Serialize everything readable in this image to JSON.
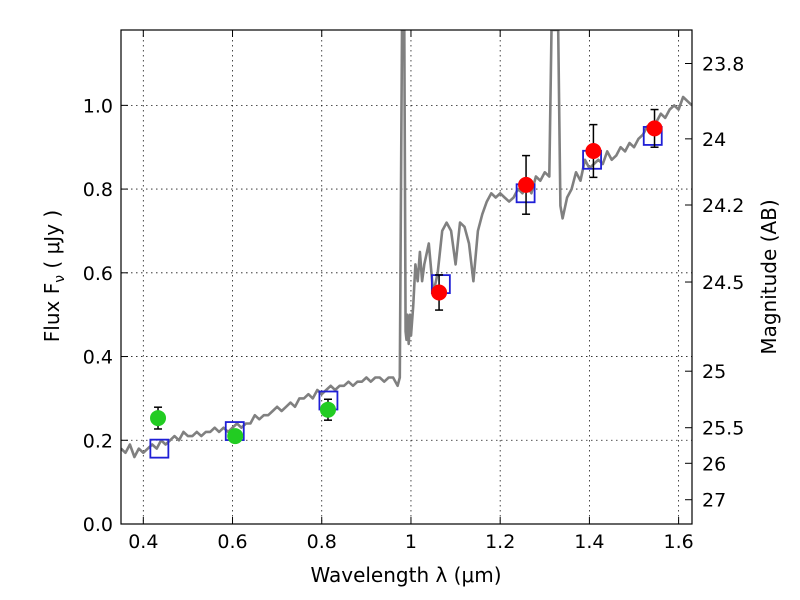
{
  "chart_data": {
    "type": "scatter",
    "title": "",
    "xlabel": "Wavelength  λ (μm)",
    "ylabel": "Flux  F",
    "ylabel_subscript": "ν",
    "ylabel_unit": "  ( μJy )",
    "ylabel_right": "Magnitude (AB)",
    "xlim": [
      0.35,
      1.63
    ],
    "ylim": [
      0.0,
      1.18
    ],
    "grid": true,
    "x_ticks": [
      {
        "value": 0.4,
        "label": "0.4"
      },
      {
        "value": 0.6,
        "label": "0.6"
      },
      {
        "value": 0.8,
        "label": "0.8"
      },
      {
        "value": 1.0,
        "label": "1"
      },
      {
        "value": 1.2,
        "label": "1.2"
      },
      {
        "value": 1.4,
        "label": "1.4"
      },
      {
        "value": 1.6,
        "label": "1.6"
      }
    ],
    "y_ticks": [
      {
        "value": 0.0,
        "label": "0.0"
      },
      {
        "value": 0.2,
        "label": "0.2"
      },
      {
        "value": 0.4,
        "label": "0.4"
      },
      {
        "value": 0.6,
        "label": "0.6"
      },
      {
        "value": 0.8,
        "label": "0.8"
      },
      {
        "value": 1.0,
        "label": "1.0"
      }
    ],
    "right_ticks": [
      {
        "flux": 1.1,
        "label": "23.8"
      },
      {
        "flux": 0.92,
        "label": "24"
      },
      {
        "flux": 0.762,
        "label": "24.2"
      },
      {
        "flux": 0.578,
        "label": "24.5"
      },
      {
        "flux": 0.365,
        "label": "25"
      },
      {
        "flux": 0.23,
        "label": "25.5"
      },
      {
        "flux": 0.145,
        "label": "26"
      },
      {
        "flux": 0.058,
        "label": "27"
      }
    ],
    "series": [
      {
        "kind": "line",
        "color": "#808080",
        "x": [
          0.35,
          0.36,
          0.37,
          0.38,
          0.39,
          0.4,
          0.41,
          0.42,
          0.43,
          0.44,
          0.45,
          0.46,
          0.47,
          0.48,
          0.49,
          0.5,
          0.51,
          0.52,
          0.53,
          0.54,
          0.55,
          0.56,
          0.57,
          0.58,
          0.59,
          0.6,
          0.61,
          0.62,
          0.63,
          0.64,
          0.65,
          0.66,
          0.67,
          0.68,
          0.69,
          0.7,
          0.71,
          0.72,
          0.73,
          0.74,
          0.75,
          0.76,
          0.77,
          0.78,
          0.79,
          0.8,
          0.81,
          0.82,
          0.83,
          0.84,
          0.85,
          0.86,
          0.87,
          0.88,
          0.89,
          0.9,
          0.91,
          0.92,
          0.93,
          0.94,
          0.95,
          0.96,
          0.97,
          0.975,
          0.98,
          0.983,
          0.985,
          0.988,
          0.99,
          0.992,
          0.995,
          0.998,
          1.0,
          1.005,
          1.01,
          1.015,
          1.02,
          1.025,
          1.03,
          1.04,
          1.05,
          1.06,
          1.07,
          1.08,
          1.09,
          1.1,
          1.11,
          1.12,
          1.13,
          1.14,
          1.15,
          1.16,
          1.17,
          1.18,
          1.19,
          1.2,
          1.21,
          1.22,
          1.23,
          1.24,
          1.25,
          1.26,
          1.27,
          1.28,
          1.29,
          1.3,
          1.31,
          1.315,
          1.32,
          1.325,
          1.33,
          1.335,
          1.34,
          1.35,
          1.36,
          1.37,
          1.38,
          1.39,
          1.4,
          1.41,
          1.42,
          1.43,
          1.44,
          1.45,
          1.46,
          1.47,
          1.48,
          1.49,
          1.5,
          1.51,
          1.52,
          1.53,
          1.54,
          1.55,
          1.56,
          1.57,
          1.58,
          1.59,
          1.6,
          1.61,
          1.62,
          1.63
        ],
        "y": [
          0.18,
          0.17,
          0.19,
          0.16,
          0.18,
          0.17,
          0.18,
          0.19,
          0.18,
          0.2,
          0.19,
          0.2,
          0.21,
          0.2,
          0.22,
          0.21,
          0.21,
          0.22,
          0.21,
          0.22,
          0.22,
          0.23,
          0.22,
          0.23,
          0.22,
          0.23,
          0.24,
          0.23,
          0.24,
          0.24,
          0.26,
          0.25,
          0.26,
          0.26,
          0.27,
          0.28,
          0.27,
          0.28,
          0.29,
          0.28,
          0.3,
          0.3,
          0.31,
          0.3,
          0.32,
          0.31,
          0.32,
          0.33,
          0.32,
          0.33,
          0.33,
          0.34,
          0.33,
          0.34,
          0.34,
          0.35,
          0.34,
          0.35,
          0.35,
          0.34,
          0.35,
          0.35,
          0.33,
          0.35,
          1.18,
          1.18,
          1.18,
          0.46,
          0.44,
          0.5,
          0.43,
          0.5,
          0.45,
          0.52,
          0.62,
          0.58,
          0.65,
          0.58,
          0.62,
          0.67,
          0.55,
          0.6,
          0.7,
          0.72,
          0.7,
          0.62,
          0.72,
          0.71,
          0.67,
          0.58,
          0.7,
          0.74,
          0.77,
          0.79,
          0.78,
          0.79,
          0.78,
          0.77,
          0.78,
          0.8,
          0.79,
          0.81,
          0.79,
          0.83,
          0.82,
          0.84,
          0.83,
          1.18,
          1.18,
          1.18,
          1.18,
          0.76,
          0.73,
          0.78,
          0.8,
          0.84,
          0.82,
          0.87,
          0.85,
          0.86,
          0.87,
          0.86,
          0.89,
          0.87,
          0.88,
          0.9,
          0.89,
          0.91,
          0.9,
          0.92,
          0.93,
          0.95,
          0.94,
          0.96,
          0.98,
          0.97,
          0.99,
          1.0,
          0.99,
          1.02,
          1.01,
          1.0
        ]
      },
      {
        "kind": "model-squares",
        "color": "#1f1fd6",
        "x": [
          0.436,
          0.605,
          0.815,
          1.067,
          1.257,
          1.406,
          1.542
        ],
        "y": [
          0.18,
          0.222,
          0.295,
          0.573,
          0.79,
          0.87,
          0.927
        ]
      },
      {
        "kind": "observed-green",
        "color": "#22cc22",
        "x": [
          0.433,
          0.606,
          0.814
        ],
        "y": [
          0.253,
          0.21,
          0.273
        ],
        "yerr": [
          0.026,
          0.014,
          0.025
        ]
      },
      {
        "kind": "observed-red",
        "color": "#ff0000",
        "x": [
          1.063,
          1.258,
          1.409,
          1.546
        ],
        "y": [
          0.553,
          0.81,
          0.891,
          0.945
        ],
        "yerr": [
          0.042,
          0.07,
          0.063,
          0.045
        ]
      }
    ]
  }
}
